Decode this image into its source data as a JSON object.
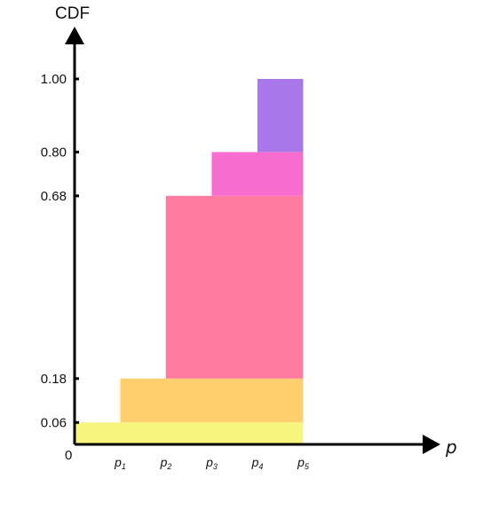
{
  "chart_data": {
    "type": "bar",
    "title": "",
    "xlabel": "p",
    "ylabel": "CDF",
    "origin_label": "0",
    "x_ticks": [
      {
        "base": "p",
        "sub": "1"
      },
      {
        "base": "p",
        "sub": "2"
      },
      {
        "base": "p",
        "sub": "3"
      },
      {
        "base": "p",
        "sub": "4"
      },
      {
        "base": "p",
        "sub": "5"
      }
    ],
    "y_ticks": [
      "0.06",
      "0.18",
      "0.68",
      "0.80",
      "1.00"
    ],
    "y_tick_values": [
      0.06,
      0.18,
      0.68,
      0.8,
      1.0
    ],
    "ylim": [
      0,
      1.0
    ],
    "xlim": [
      0,
      5
    ],
    "grid": false,
    "bands": [
      {
        "x_start": 0,
        "x_end": 5,
        "y_low": 0.0,
        "y_high": 0.06,
        "color": "#F8F57F"
      },
      {
        "x_start": 1,
        "x_end": 5,
        "y_low": 0.06,
        "y_high": 0.18,
        "color": "#FFCF6E"
      },
      {
        "x_start": 2,
        "x_end": 5,
        "y_low": 0.18,
        "y_high": 0.68,
        "color": "#FF7BA0"
      },
      {
        "x_start": 3,
        "x_end": 5,
        "y_low": 0.68,
        "y_high": 0.8,
        "color": "#F66DCF"
      },
      {
        "x_start": 4,
        "x_end": 5,
        "y_low": 0.8,
        "y_high": 1.0,
        "color": "#A877E9"
      }
    ]
  }
}
